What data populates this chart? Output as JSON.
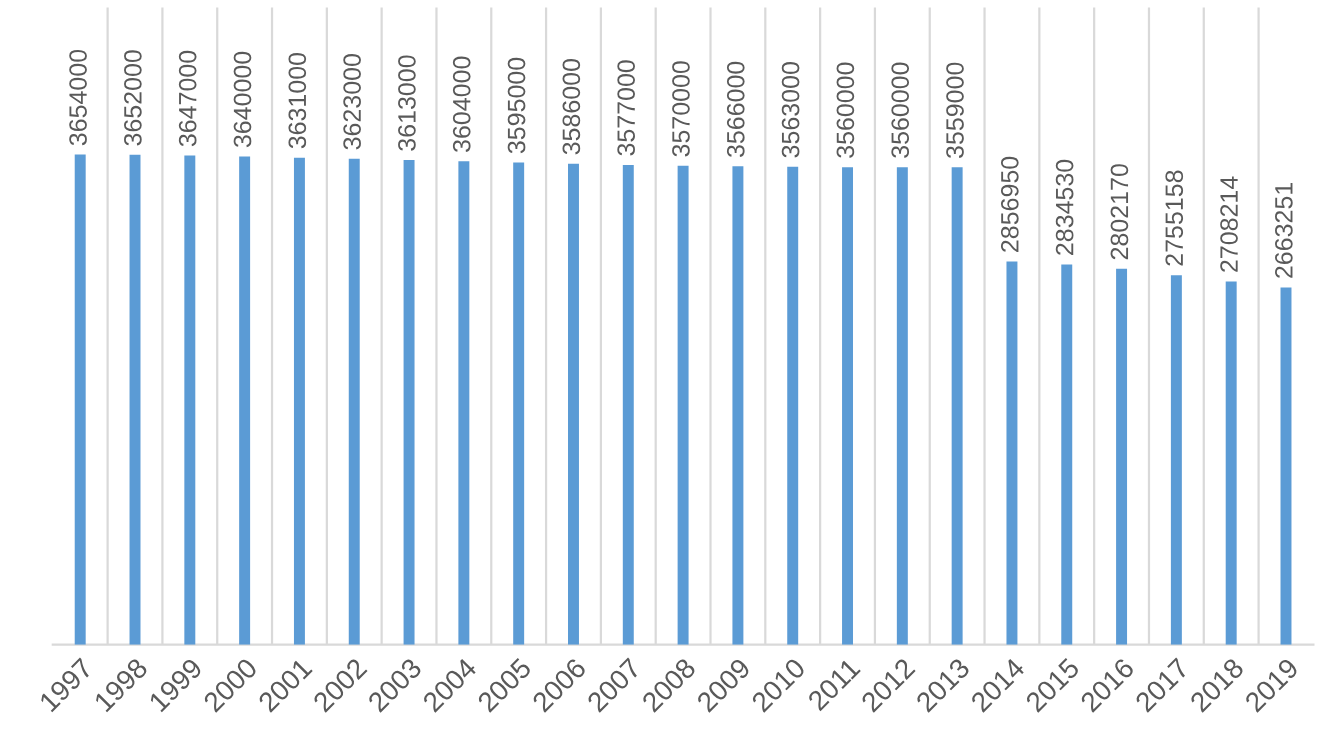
{
  "chart_data": {
    "type": "bar",
    "categories": [
      "1997",
      "1998",
      "1999",
      "2000",
      "2001",
      "2002",
      "2003",
      "2004",
      "2005",
      "2006",
      "2007",
      "2008",
      "2009",
      "2010",
      "2011",
      "2012",
      "2013",
      "2014",
      "2015",
      "2016",
      "2017",
      "2018",
      "2019"
    ],
    "values": [
      3654000,
      3652000,
      3647000,
      3640000,
      3631000,
      3623000,
      3613000,
      3604000,
      3595000,
      3586000,
      3577000,
      3570000,
      3566000,
      3563000,
      3560000,
      3560000,
      3559000,
      2856950,
      2834530,
      2802170,
      2755158,
      2708214,
      2663251
    ],
    "color": "#5b9bd5",
    "data_labels": true,
    "grid": "x",
    "legend": false,
    "tick_labels": "x"
  }
}
